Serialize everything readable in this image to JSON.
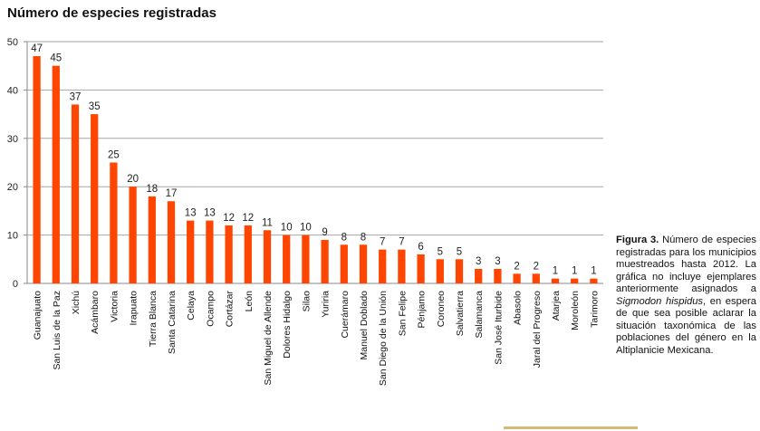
{
  "chart_data": {
    "type": "bar",
    "title": "Número de especies registradas",
    "xlabel": "",
    "ylabel": "",
    "ylim": [
      0,
      50
    ],
    "yticks": [
      0,
      10,
      20,
      30,
      40,
      50
    ],
    "grid": true,
    "bar_color": "#ff4500",
    "categories": [
      "Guanajuato",
      "San Luis de la Paz",
      "Xichú",
      "Acámbaro",
      "Victoria",
      "Irapuato",
      "Tierra Blanca",
      "Santa Catarina",
      "Celaya",
      "Ocampo",
      "Cortázar",
      "León",
      "San Miguel de Allende",
      "Dolores Hidalgo",
      "Silao",
      "Yuriria",
      "Cuerámaro",
      "Manuel Doblado",
      "San Diego de la Unión",
      "San Felipe",
      "Pénjamo",
      "Coroneo",
      "Salvatierra",
      "Salamanca",
      "San José Iturbide",
      "Abasolo",
      "Jaral del Progreso",
      "Atarjea",
      "Moroleón",
      "Tarimoro"
    ],
    "values": [
      47,
      45,
      37,
      35,
      25,
      20,
      18,
      17,
      13,
      13,
      12,
      12,
      11,
      10,
      10,
      9,
      8,
      8,
      7,
      7,
      6,
      5,
      5,
      3,
      3,
      2,
      2,
      1,
      1,
      1
    ]
  },
  "caption": {
    "label": "Figura 3.",
    "text_before": " Número de especies registradas para los municipios muestreados hasta 2012. La gráfica no incluye ejemplares anteriormente asignados a ",
    "species": "Sigmodon hispidus",
    "text_after": ", en espera de que sea posible aclarar la situación taxonómica de las poblaciones del género en la Altiplanicie Mexicana."
  }
}
